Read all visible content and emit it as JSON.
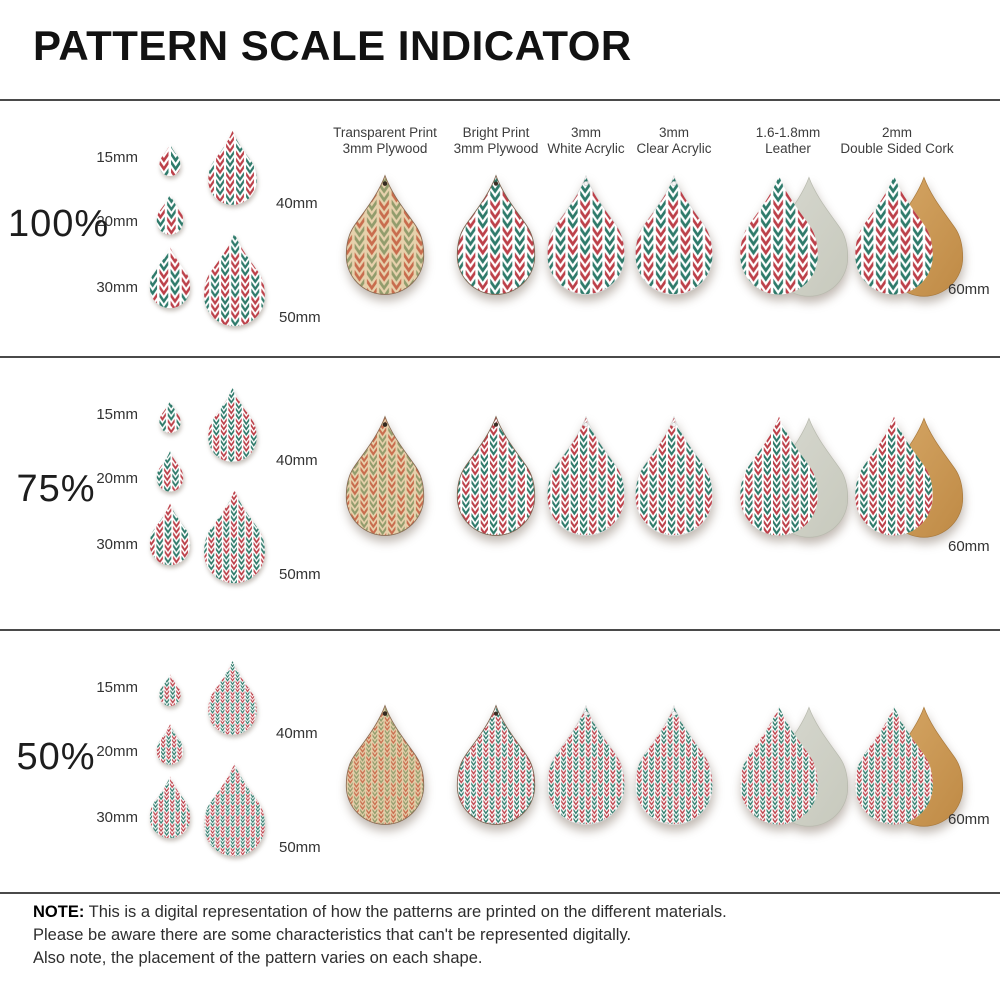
{
  "title": "PATTERN SCALE INDICATOR",
  "columns": [
    {
      "line1": "Transparent Print",
      "line2": "3mm Plywood"
    },
    {
      "line1": "Bright Print",
      "line2": "3mm Plywood"
    },
    {
      "line1": "3mm",
      "line2": "White Acrylic"
    },
    {
      "line1": "3mm",
      "line2": "Clear Acrylic"
    },
    {
      "line1": "1.6-1.8mm",
      "line2": "Leather"
    },
    {
      "line1": "2mm",
      "line2": "Double Sided Cork"
    }
  ],
  "rows": [
    {
      "scale": "100%"
    },
    {
      "scale": "75%"
    },
    {
      "scale": "50%"
    }
  ],
  "sizes": {
    "s15": "15mm",
    "s20": "20mm",
    "s30": "30mm",
    "s40": "40mm",
    "s50": "50mm",
    "s60": "60mm"
  },
  "note": {
    "label": "NOTE:",
    "line1": "This is a digital representation of how the patterns are printed on the different materials.",
    "line2": "Please be aware there are some characteristics that can't be represented digitally.",
    "line3": "Also note, the placement of the pattern varies on each shape."
  },
  "colors": {
    "pattern_red": "#bc4049",
    "pattern_green": "#2e7a6a",
    "wood_base": "#e7d1ac",
    "wood_red": "#c86c4d",
    "wood_green": "#929c6c",
    "leather_gray": "#d2d4c9",
    "cork_tan": "#cd9a56",
    "divider": "#4a4a4a"
  }
}
